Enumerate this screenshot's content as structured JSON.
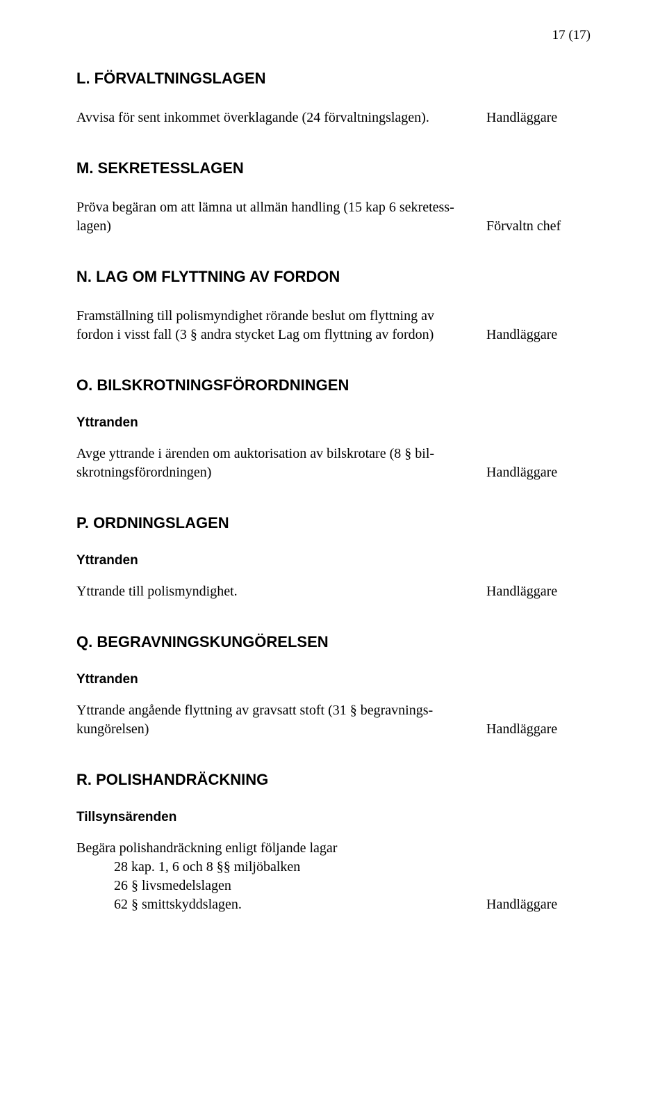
{
  "page_number": "17 (17)",
  "L": {
    "heading": "L.   FÖRVALTNINGSLAGEN",
    "item_text": "Avvisa för sent inkommet överklagande (24 förvaltningslagen).",
    "item_right": "Handläggare"
  },
  "M": {
    "heading": "M.   SEKRETESSLAGEN",
    "item_text": "Pröva begäran om att lämna ut allmän handling (15 kap  6 sekretess-lagen)",
    "item_right": "Förvaltn chef"
  },
  "N": {
    "heading": "N.   LAG OM FLYTTNING AV FORDON",
    "item_text": "Framställning till polismyndighet rörande beslut om flyttning av fordon i visst fall   (3 § andra stycket Lag om flyttning av fordon)",
    "item_right": "Handläggare"
  },
  "O": {
    "heading": "O.   BILSKROTNINGSFÖRORDNINGEN",
    "sub": "Yttranden",
    "item_text": "Avge yttrande i ärenden om auktorisation av bilskrotare (8 § bil-skrotningsförordningen)",
    "item_right": "Handläggare"
  },
  "P": {
    "heading": "P.   ORDNINGSLAGEN",
    "sub": "Yttranden",
    "item_text": "Yttrande till polismyndighet.",
    "item_right": "Handläggare"
  },
  "Q": {
    "heading": " Q.   BEGRAVNINGSKUNGÖRELSEN",
    "sub": "Yttranden",
    "item_text": "Yttrande angående flyttning av gravsatt stoft (31 § begravnings-kungörelsen)",
    "item_right": "Handläggare"
  },
  "R": {
    "heading": "R.   POLISHANDRÄCKNING",
    "sub": "Tillsynsärenden",
    "lead": "Begära polishandräckning enligt följande lagar",
    "line1": "28 kap. 1, 6 och 8 §§ miljöbalken",
    "line2": "26 § livsmedelslagen",
    "line3": "62 § smittskyddslagen.",
    "right": "Handläggare"
  }
}
